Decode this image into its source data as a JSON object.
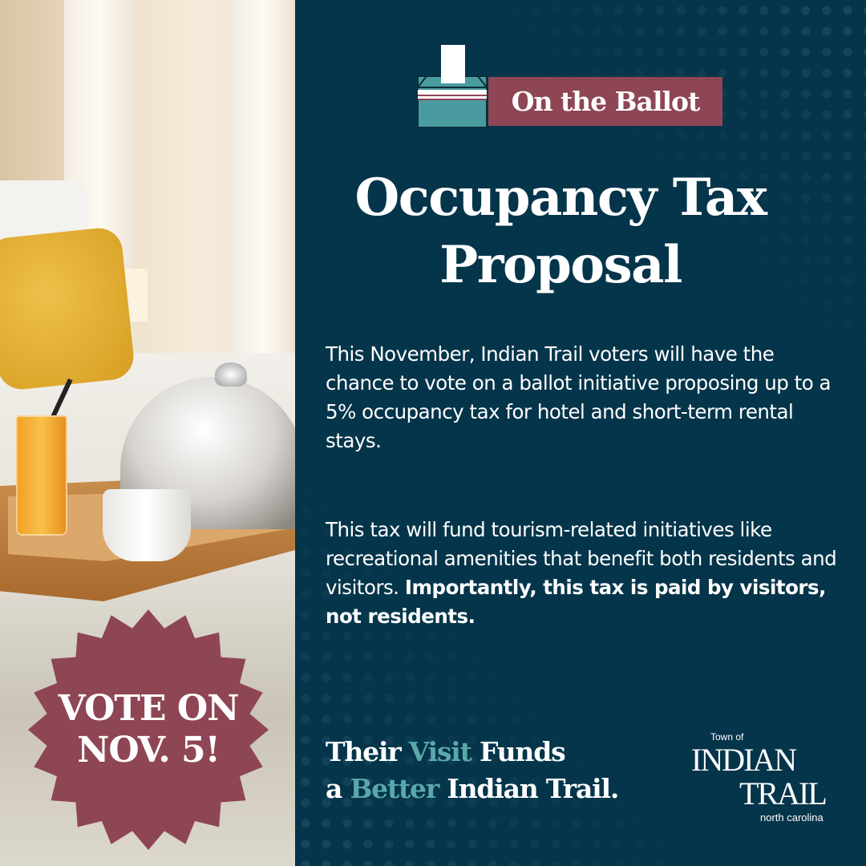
{
  "badge": {
    "line1": "VOTE ON",
    "line2": "NOV. 5!",
    "color": "#8e4654"
  },
  "header": {
    "pill_label": "On the Ballot",
    "pill_color": "#8e4654",
    "icon": "ballot-box-icon",
    "icon_color": "#4a9ba0"
  },
  "title": {
    "line1": "Occupancy Tax",
    "line2": "Proposal"
  },
  "body": {
    "para1": "This November, Indian Trail voters will have the chance to vote on a ballot initiative proposing up to a 5% occupancy tax for hotel and short-term rental stays.",
    "para2_regular": "This tax will fund tourism-related initiatives like recreational amenities that benefit both residents and visitors. ",
    "para2_bold": "Importantly, this tax is paid by visitors, not residents."
  },
  "tagline": {
    "w1": "Their ",
    "w2": "Visit",
    "w3": " Funds",
    "w4": "a ",
    "w5": "Better",
    "w6": " Indian Trail.",
    "highlight_color": "#5aa8aa"
  },
  "logo": {
    "town_of": "Town of",
    "indian": "INDIAN",
    "trail": "TRAIL",
    "state": "north carolina"
  },
  "colors": {
    "background": "#05354a"
  }
}
